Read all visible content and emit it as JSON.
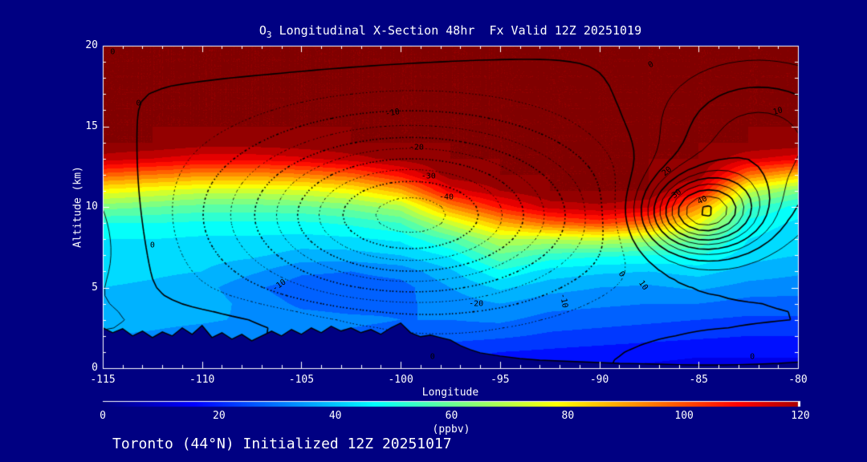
{
  "title": {
    "prefix": "O",
    "sub": "3",
    "rest": " Longitudinal X-Section 48hr  Fx Valid 12Z 20251019"
  },
  "footer": "Toronto (44°N) Initialized 12Z 20251017",
  "axes": {
    "x_label": "Longitude",
    "y_label": "Altitude (km)",
    "x_range": [
      -115,
      -80
    ],
    "y_range": [
      0,
      20
    ],
    "x_ticks": [
      -115,
      -110,
      -105,
      -100,
      -95,
      -90,
      -85,
      -80
    ],
    "y_ticks": [
      0,
      5,
      10,
      15,
      20
    ],
    "x_minor_step": 1,
    "y_minor_step": 1
  },
  "colorbar": {
    "min": 0,
    "max": 120,
    "ticks": [
      0,
      20,
      40,
      60,
      80,
      100,
      120
    ],
    "unit": "(ppbv)"
  },
  "colors": {
    "background": "#000082",
    "frame": "#ffffff",
    "text": "#ffffff",
    "contour": "#000000"
  },
  "chart_data": {
    "type": "heatmap",
    "title": "O3 Longitudinal X-Section 48hr Fx Valid 12Z 20251019",
    "xlabel": "Longitude",
    "ylabel": "Altitude (km)",
    "xlim": [
      -115,
      -80
    ],
    "ylim": [
      0,
      20
    ],
    "colormap": "jet",
    "value_units": "ppbv",
    "value_range_shown": [
      0,
      120
    ],
    "grid_lons": [
      -115,
      -112.5,
      -110,
      -107.5,
      -105,
      -102.5,
      -100,
      -97.5,
      -95,
      -92.5,
      -90,
      -87.5,
      -85,
      -82.5,
      -80
    ],
    "grid_alts_km": [
      0,
      1,
      2,
      3,
      4,
      5,
      6,
      7,
      8,
      9,
      10,
      11,
      12,
      13,
      14,
      15,
      16,
      17,
      18,
      19,
      20
    ],
    "ozone_ppbv_by_lon": [
      [
        30,
        32,
        35,
        38,
        40,
        40,
        42,
        43,
        45,
        50,
        62,
        78,
        98,
        118,
        125,
        125,
        125,
        125,
        125,
        125,
        125
      ],
      [
        28,
        31,
        34,
        37,
        39,
        39,
        41,
        43,
        45,
        50,
        60,
        75,
        95,
        115,
        125,
        125,
        125,
        125,
        125,
        125,
        125
      ],
      [
        26,
        29,
        32,
        36,
        38,
        37,
        40,
        42,
        44,
        49,
        58,
        72,
        92,
        112,
        123,
        125,
        125,
        125,
        125,
        125,
        125
      ],
      [
        24,
        27,
        31,
        34,
        33,
        31,
        36,
        41,
        44,
        49,
        58,
        72,
        92,
        112,
        123,
        125,
        125,
        125,
        125,
        125,
        125
      ],
      [
        22,
        26,
        30,
        32,
        29,
        27,
        31,
        38,
        43,
        49,
        59,
        74,
        94,
        114,
        124,
        125,
        125,
        125,
        125,
        125,
        125
      ],
      [
        21,
        25,
        29,
        31,
        28,
        27,
        30,
        38,
        44,
        51,
        62,
        78,
        98,
        118,
        125,
        125,
        125,
        125,
        125,
        125,
        125
      ],
      [
        20,
        24,
        28,
        30,
        29,
        28,
        32,
        40,
        46,
        55,
        68,
        88,
        108,
        122,
        125,
        125,
        125,
        125,
        125,
        125,
        125
      ],
      [
        18,
        22,
        27,
        30,
        32,
        35,
        39,
        46,
        56,
        72,
        92,
        112,
        123,
        125,
        125,
        125,
        125,
        125,
        125,
        125,
        125
      ],
      [
        16,
        20,
        26,
        31,
        35,
        41,
        49,
        59,
        70,
        88,
        107,
        120,
        125,
        125,
        125,
        125,
        125,
        125,
        125,
        125,
        125
      ],
      [
        15,
        19,
        24,
        28,
        32,
        37,
        43,
        53,
        70,
        97,
        117,
        125,
        125,
        125,
        125,
        125,
        125,
        125,
        125,
        125,
        125
      ],
      [
        14,
        18,
        23,
        27,
        31,
        35,
        41,
        51,
        72,
        102,
        119,
        125,
        125,
        125,
        125,
        125,
        125,
        125,
        125,
        125,
        125
      ],
      [
        14,
        17,
        22,
        26,
        30,
        34,
        40,
        50,
        68,
        96,
        116,
        125,
        125,
        125,
        125,
        125,
        125,
        125,
        125,
        125,
        125
      ],
      [
        13,
        16,
        21,
        25,
        30,
        36,
        42,
        50,
        60,
        76,
        92,
        112,
        123,
        125,
        125,
        125,
        125,
        125,
        125,
        125,
        125
      ],
      [
        13,
        16,
        20,
        24,
        28,
        33,
        38,
        42,
        45,
        48,
        56,
        72,
        96,
        116,
        125,
        125,
        125,
        125,
        125,
        125,
        125
      ],
      [
        13,
        16,
        20,
        24,
        28,
        32,
        36,
        40,
        42,
        44,
        48,
        62,
        86,
        112,
        124,
        125,
        125,
        125,
        125,
        125,
        125
      ]
    ],
    "terrain_km": [
      [
        -115,
        2.5
      ],
      [
        -114.5,
        2.2
      ],
      [
        -114,
        2.45
      ],
      [
        -113.5,
        2.0
      ],
      [
        -113,
        2.3
      ],
      [
        -112.5,
        1.9
      ],
      [
        -112,
        2.25
      ],
      [
        -111.5,
        2.0
      ],
      [
        -111,
        2.5
      ],
      [
        -110.5,
        2.1
      ],
      [
        -110,
        2.65
      ],
      [
        -109.5,
        1.9
      ],
      [
        -109,
        2.2
      ],
      [
        -108.5,
        1.8
      ],
      [
        -108,
        2.1
      ],
      [
        -107.5,
        1.7
      ],
      [
        -107,
        2.0
      ],
      [
        -106.5,
        2.3
      ],
      [
        -106,
        2.0
      ],
      [
        -105.5,
        2.4
      ],
      [
        -105,
        2.1
      ],
      [
        -104.5,
        2.5
      ],
      [
        -104,
        2.2
      ],
      [
        -103.5,
        2.6
      ],
      [
        -103,
        2.3
      ],
      [
        -102.5,
        2.5
      ],
      [
        -102,
        2.2
      ],
      [
        -101.5,
        2.4
      ],
      [
        -101,
        2.1
      ],
      [
        -100.5,
        2.5
      ],
      [
        -100,
        2.8
      ],
      [
        -99.5,
        2.2
      ],
      [
        -99,
        1.95
      ],
      [
        -98.5,
        2.05
      ],
      [
        -98,
        1.9
      ],
      [
        -97.5,
        1.75
      ],
      [
        -97,
        1.4
      ],
      [
        -96.5,
        1.15
      ],
      [
        -96,
        0.95
      ],
      [
        -95,
        0.75
      ],
      [
        -94,
        0.6
      ],
      [
        -93,
        0.5
      ],
      [
        -92,
        0.45
      ],
      [
        -91,
        0.4
      ],
      [
        -90,
        0.35
      ],
      [
        -89,
        0.3
      ],
      [
        -88,
        0.28
      ],
      [
        -87,
        0.25
      ],
      [
        -86,
        0.22
      ],
      [
        -85,
        0.2
      ],
      [
        -84,
        0.2
      ],
      [
        -83,
        0.22
      ],
      [
        -82,
        0.25
      ],
      [
        -81,
        0.3
      ],
      [
        -80,
        0.38
      ]
    ],
    "overlay_contours": {
      "interval": 5,
      "levels_min": -45,
      "levels_max": 50,
      "negative_style": "dotted",
      "positive_style": "solid",
      "bold_every": 10,
      "model_gaussians": [
        {
          "amp": -47,
          "lon0": -99.5,
          "slon": 8.5,
          "alt0": 9.5,
          "salt": 5.2
        },
        {
          "amp": 48,
          "lon0": -84.8,
          "slon": 2.9,
          "alt0": 9.6,
          "salt": 2.4
        },
        {
          "amp": 18,
          "lon0": -82.0,
          "slon": 5.0,
          "alt0": 14.0,
          "salt": 4.5
        },
        {
          "amp": 5,
          "lon0": -107.0,
          "slon": 12.0,
          "alt0": 20.5,
          "salt": 2.0
        },
        {
          "amp": 8,
          "lon0": -116.0,
          "slon": 3.5,
          "alt0": 8.0,
          "salt": 6.0
        },
        {
          "amp": 4,
          "lon0": -108.0,
          "slon": 10.0,
          "alt0": 2.8,
          "salt": 1.4
        },
        {
          "amp": 3,
          "lon0": -84.0,
          "slon": 4.0,
          "alt0": 0.5,
          "salt": 1.2
        }
      ],
      "labels": [
        {
          "lon": -114.5,
          "alt": 19.6,
          "t": "0",
          "r": 0
        },
        {
          "lon": -113.2,
          "alt": 16.4,
          "t": "0",
          "r": 0
        },
        {
          "lon": -112.5,
          "alt": 7.6,
          "t": "0",
          "r": 0
        },
        {
          "lon": -100.4,
          "alt": 15.8,
          "t": "-10",
          "r": -10
        },
        {
          "lon": -99.2,
          "alt": 13.7,
          "t": "-20",
          "r": 0
        },
        {
          "lon": -98.6,
          "alt": 11.9,
          "t": "-30",
          "r": 0
        },
        {
          "lon": -97.7,
          "alt": 10.6,
          "t": "-40",
          "r": 0
        },
        {
          "lon": -106.1,
          "alt": 5.1,
          "t": "-10",
          "r": -35
        },
        {
          "lon": -96.2,
          "alt": 4.0,
          "t": "-20",
          "r": 0
        },
        {
          "lon": -91.8,
          "alt": 4.2,
          "t": "-10",
          "r": 80
        },
        {
          "lon": -87.4,
          "alt": 18.8,
          "t": "0",
          "r": -30
        },
        {
          "lon": -81.0,
          "alt": 15.9,
          "t": "10",
          "r": -15
        },
        {
          "lon": -86.6,
          "alt": 12.2,
          "t": "20",
          "r": -40
        },
        {
          "lon": -86.1,
          "alt": 10.8,
          "t": "30",
          "r": -35
        },
        {
          "lon": -84.8,
          "alt": 10.4,
          "t": "40",
          "r": -25
        },
        {
          "lon": -88.9,
          "alt": 5.8,
          "t": "0",
          "r": 55
        },
        {
          "lon": -87.8,
          "alt": 5.1,
          "t": "10",
          "r": 55
        },
        {
          "lon": -98.4,
          "alt": 0.7,
          "t": "0",
          "r": 0
        },
        {
          "lon": -82.3,
          "alt": 0.7,
          "t": "0",
          "r": 0
        }
      ]
    }
  }
}
